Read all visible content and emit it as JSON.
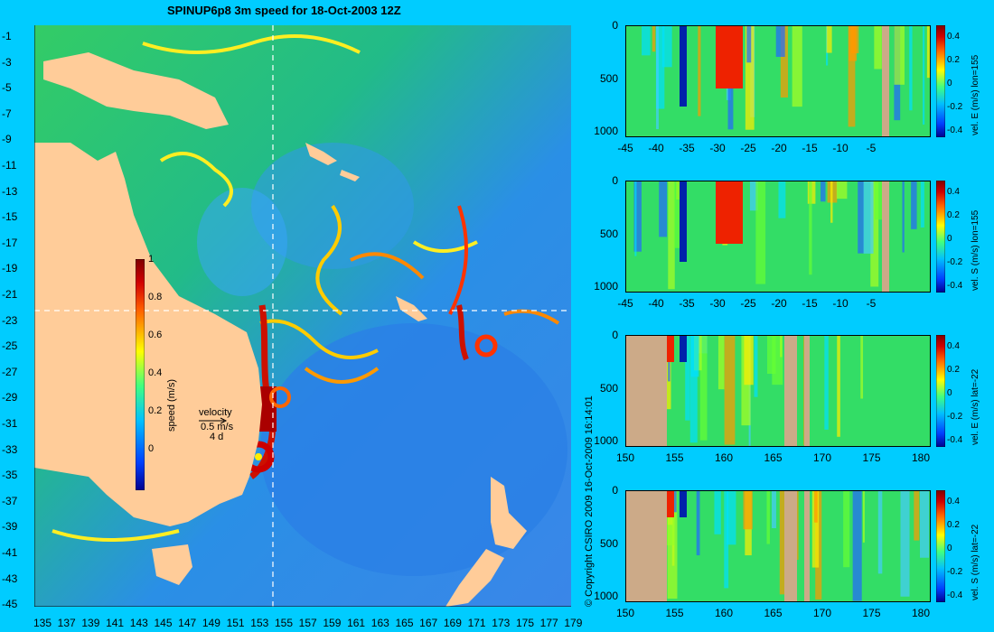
{
  "map": {
    "title": "SPINUP6p8 3m speed for 18-Oct-2003 12Z",
    "lat_labels": [
      "-1",
      "-3",
      "-5",
      "-7",
      "-9",
      "-11",
      "-13",
      "-15",
      "-17",
      "-19",
      "-21",
      "-23",
      "-25",
      "-27",
      "-29",
      "-31",
      "-33",
      "-35",
      "-37",
      "-39",
      "-41",
      "-43",
      "-45"
    ],
    "lon_labels": [
      "135",
      "137",
      "139",
      "141",
      "143",
      "145",
      "147",
      "149",
      "151",
      "153",
      "155",
      "157",
      "159",
      "161",
      "163",
      "165",
      "167",
      "169",
      "171",
      "173",
      "175",
      "177",
      "179"
    ],
    "colorbar": {
      "label": "speed (m/s)",
      "ticks": [
        "1",
        "0.8",
        "0.6",
        "0.4",
        "0.2",
        "0"
      ]
    },
    "velocity_key": {
      "title": "velocity",
      "value": "0.5 m/s",
      "days": "4 d"
    },
    "copyright": "© Copyright CSIRO 2009   16-Oct-2009 16:14:01",
    "section_lines": {
      "lon": 155,
      "lat": -22
    }
  },
  "panels": [
    {
      "cb_label": "vel. E (m/s) lon=155",
      "x_labels": [
        "-45",
        "-40",
        "-35",
        "-30",
        "-25",
        "-20",
        "-15",
        "-10",
        "-5"
      ],
      "y_labels": [
        "0",
        "500",
        "1000"
      ],
      "cb_ticks": [
        "0.4",
        "0.2",
        "0",
        "-0.2",
        "-0.4"
      ]
    },
    {
      "cb_label": "vel. S (m/s) lon=155",
      "x_labels": [
        "-45",
        "-40",
        "-35",
        "-30",
        "-25",
        "-20",
        "-15",
        "-10",
        "-5"
      ],
      "y_labels": [
        "0",
        "500",
        "1000"
      ],
      "cb_ticks": [
        "0.4",
        "0.2",
        "0",
        "-0.2",
        "-0.4"
      ]
    },
    {
      "cb_label": "vel. E (m/s) lat=-22",
      "x_labels": [
        "150",
        "155",
        "160",
        "165",
        "170",
        "175",
        "180"
      ],
      "y_labels": [
        "0",
        "500",
        "1000"
      ],
      "cb_ticks": [
        "0.4",
        "0.2",
        "0",
        "-0.2",
        "-0.4"
      ]
    },
    {
      "cb_label": "vel. S (m/s) lat=-22",
      "x_labels": [
        "150",
        "155",
        "160",
        "165",
        "170",
        "175",
        "180"
      ],
      "y_labels": [
        "0",
        "500",
        "1000"
      ],
      "cb_ticks": [
        "0.4",
        "0.2",
        "0",
        "-0.2",
        "-0.4"
      ]
    }
  ]
}
